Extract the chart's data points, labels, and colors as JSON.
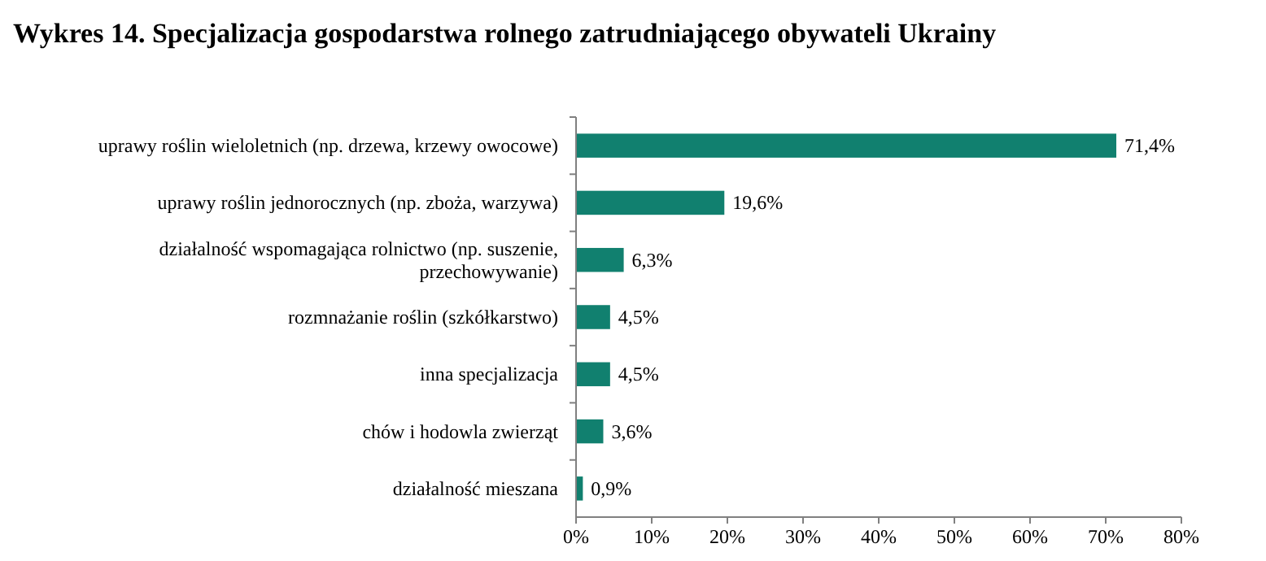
{
  "chart_data": {
    "type": "bar",
    "orientation": "horizontal",
    "title": "Wykres 14. Specjalizacja gospodarstwa rolnego zatrudniającego obywateli Ukrainy",
    "categories": [
      "uprawy roślin wieloletnich (np. drzewa, krzewy owocowe)",
      "uprawy roślin jednorocznych (np. zboża, warzywa)",
      "działalność wspomagająca rolnictwo (np. suszenie, przechowywanie)",
      "rozmnażanie roślin (szkółkarstwo)",
      "inna specjalizacja",
      "chów i hodowla zwierząt",
      "działalność mieszana"
    ],
    "values": [
      71.4,
      19.6,
      6.3,
      4.5,
      4.5,
      3.6,
      0.9
    ],
    "value_labels": [
      "71,4%",
      "19,6%",
      "6,3%",
      "4,5%",
      "4,5%",
      "3,6%",
      "0,9%"
    ],
    "color": "#11806f",
    "xlim": [
      0,
      80
    ],
    "xticks": [
      {
        "value": 0,
        "label": "0%"
      },
      {
        "value": 10,
        "label": "10%"
      },
      {
        "value": 20,
        "label": "20%"
      },
      {
        "value": 30,
        "label": "30%"
      },
      {
        "value": 40,
        "label": "40%"
      },
      {
        "value": 50,
        "label": "50%"
      },
      {
        "value": 60,
        "label": "60%"
      },
      {
        "value": 70,
        "label": "70%"
      },
      {
        "value": 80,
        "label": "80%"
      }
    ]
  }
}
